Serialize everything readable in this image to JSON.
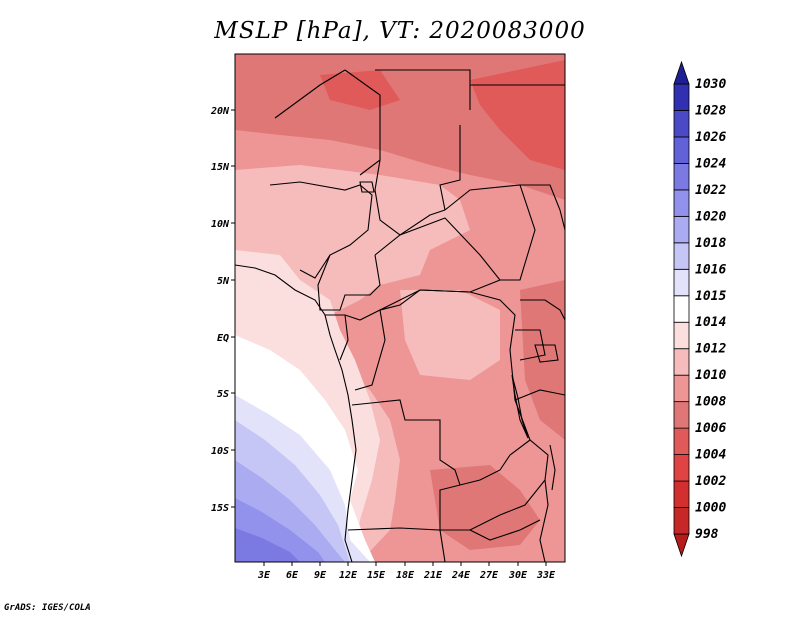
{
  "title": "MSLP [hPa], VT: 2020083000",
  "footer": "GrADS: IGES/COLA",
  "axes": {
    "lon_labels": [
      "3E",
      "6E",
      "9E",
      "12E",
      "15E",
      "18E",
      "21E",
      "24E",
      "27E",
      "30E",
      "33E"
    ],
    "lat_labels": [
      "20N",
      "15N",
      "10N",
      "5N",
      "EQ",
      "5S",
      "10S",
      "15S"
    ]
  },
  "colorbar": {
    "levels": [
      "998",
      "1000",
      "1002",
      "1004",
      "1006",
      "1008",
      "1010",
      "1012",
      "1014",
      "1015",
      "1016",
      "1018",
      "1020",
      "1022",
      "1024",
      "1026",
      "1028",
      "1030"
    ],
    "colors": [
      "#b71c1c",
      "#c62828",
      "#d32f2f",
      "#e04343",
      "#e05a5a",
      "#e07777",
      "#ee9595",
      "#f6bcbc",
      "#fbdede",
      "#ffffff",
      "#e2e2fa",
      "#c6c6f6",
      "#ababf2",
      "#9292ec",
      "#7a7ae2",
      "#6262d8",
      "#4a4ac6",
      "#3030b0",
      "#1f1f95"
    ]
  },
  "map": {
    "field": "MSLP",
    "units": "hPa",
    "valid_time": "2020083000"
  }
}
